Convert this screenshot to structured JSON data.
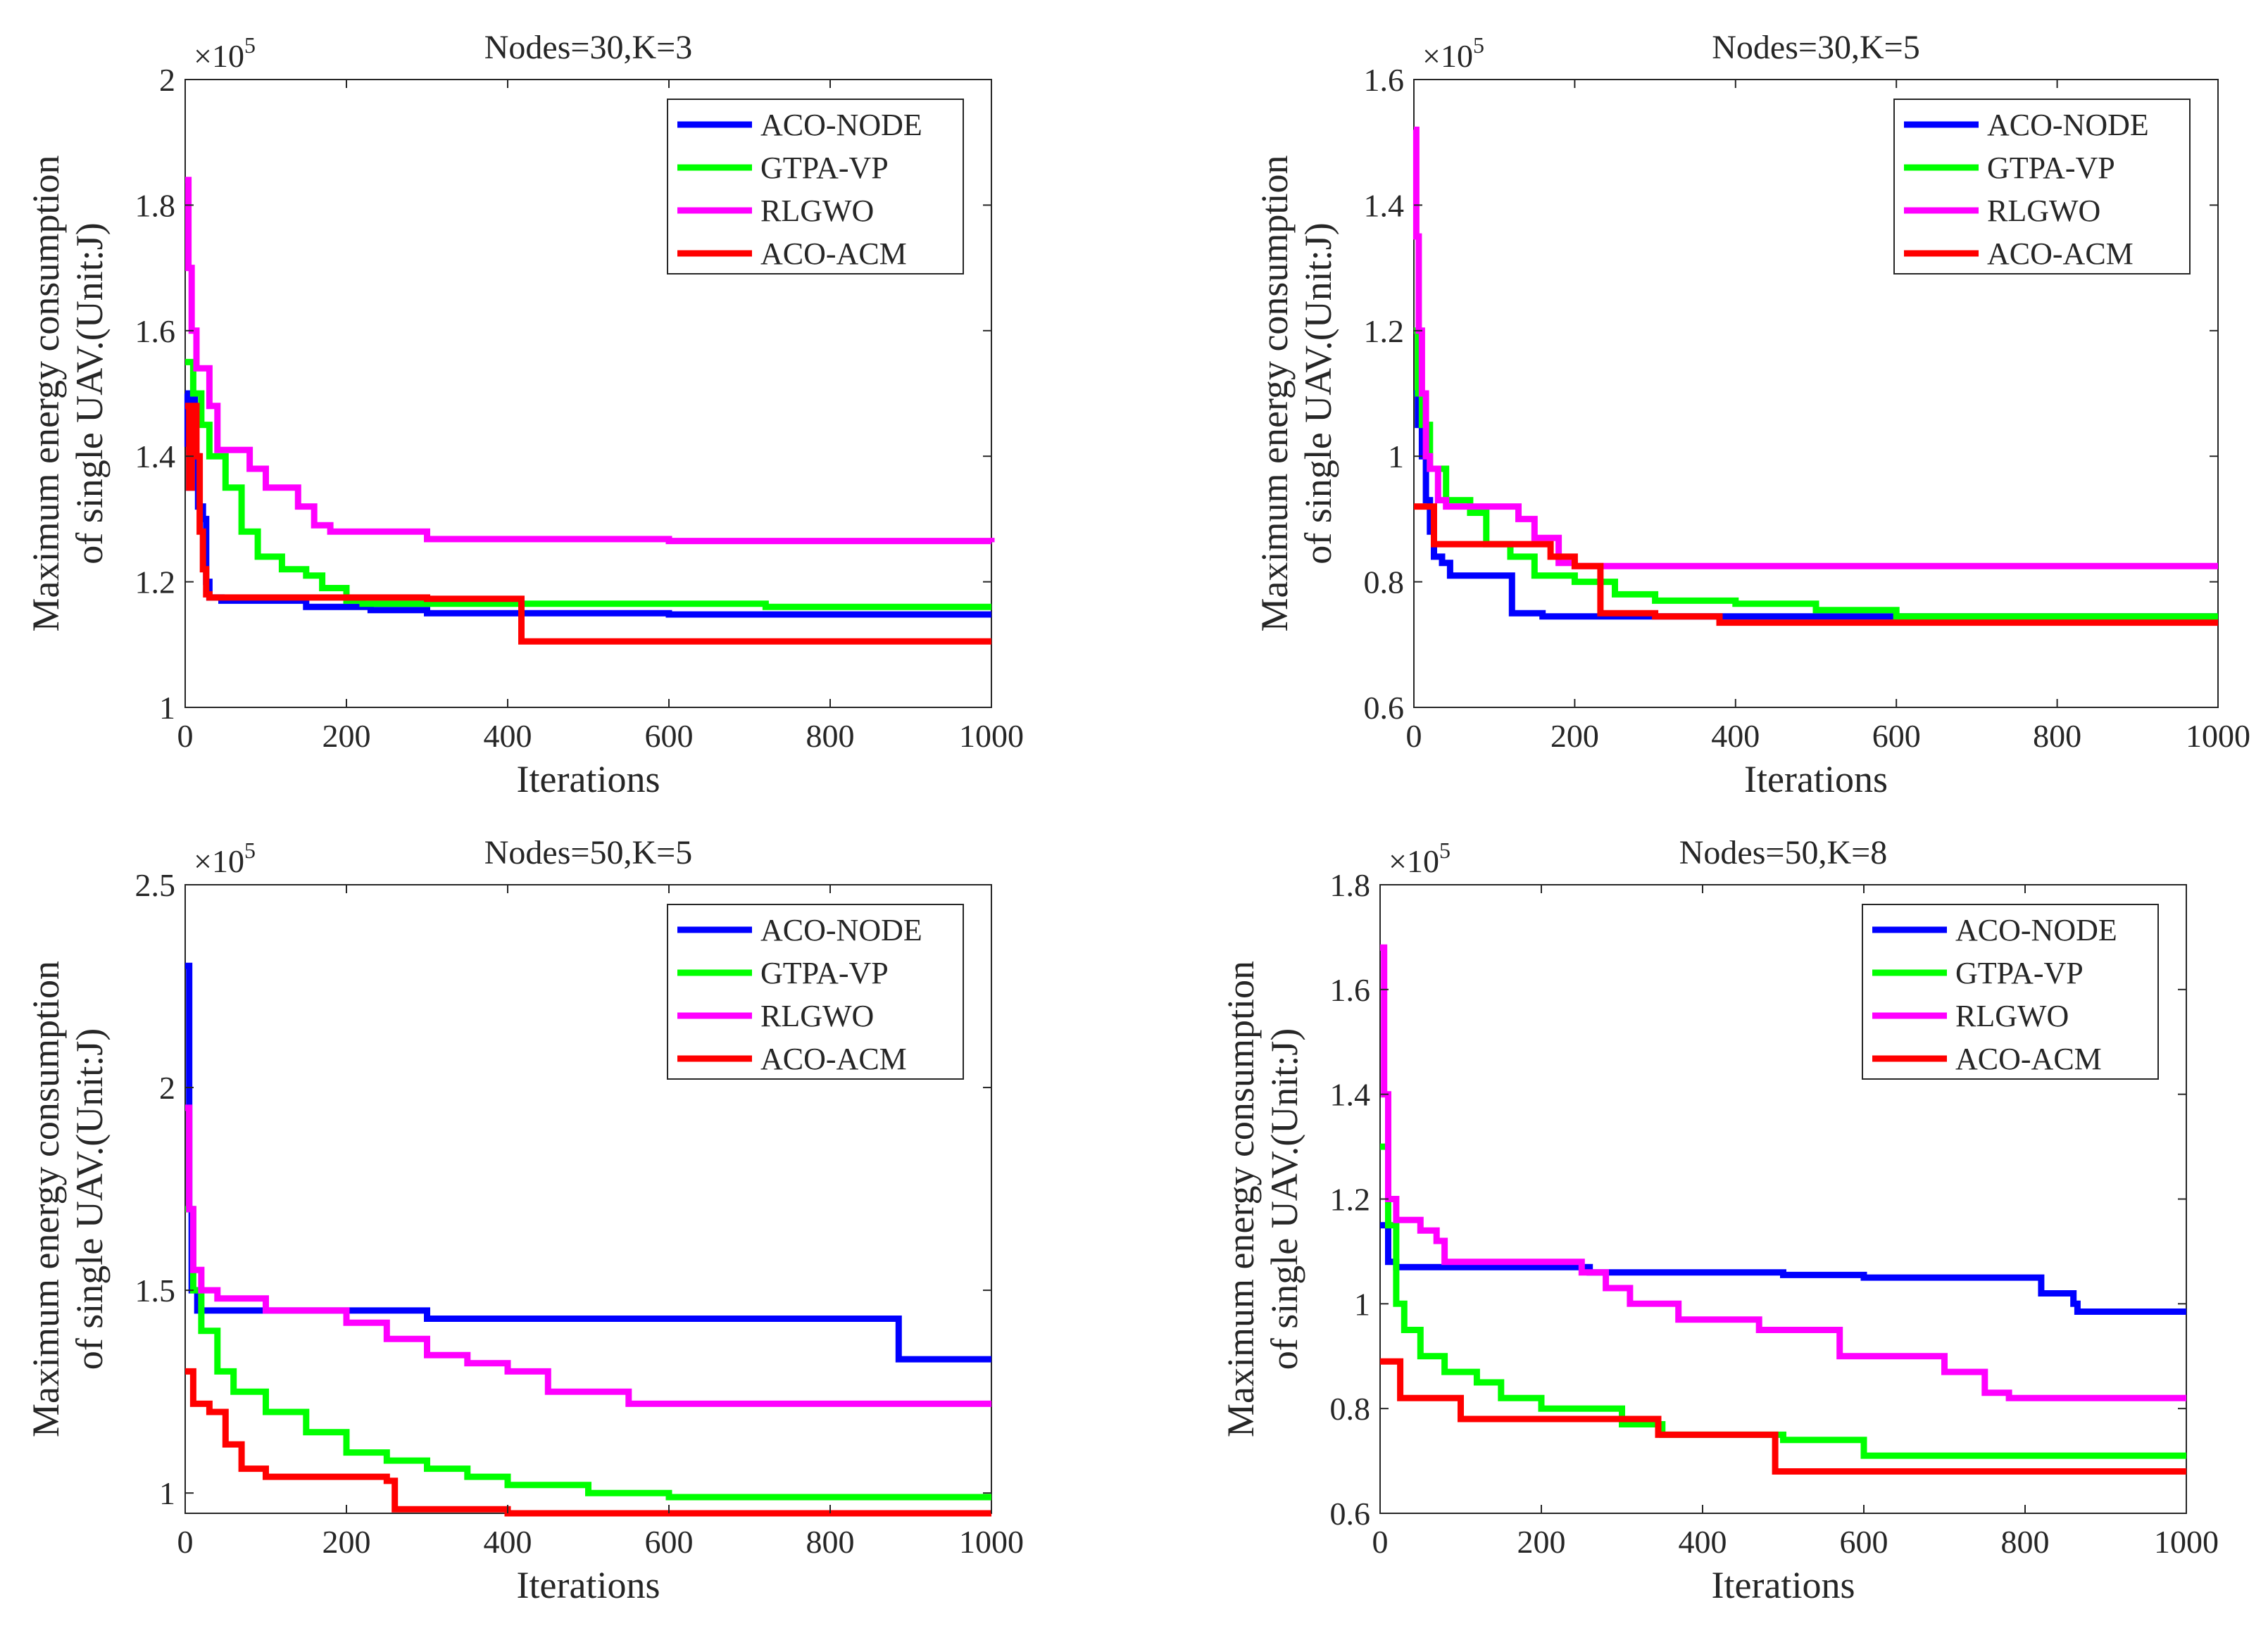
{
  "figure": {
    "x_axis_label": "Iterations"
  },
  "chart_data": [
    {
      "type": "line",
      "title": "Nodes=30,K=3",
      "xlabel": "Iterations",
      "ylabel_line1": "Maximum energy consumption",
      "ylabel_line2": "of single UAV.(Unit:J)",
      "exponent_base": "×10",
      "exponent_power": "5",
      "xlim": [
        0,
        1000
      ],
      "ylim": [
        1.0,
        2.0
      ],
      "x_ticks": [
        0,
        200,
        400,
        600,
        800,
        1000
      ],
      "y_ticks": [
        1,
        1.2,
        1.4,
        1.6,
        1.8,
        2
      ],
      "y_tick_labels": [
        "1",
        "1.2",
        "1.4",
        "1.6",
        "1.8",
        "2"
      ],
      "legend": [
        "ACO-NODE",
        "GTPA-VP",
        "RLGWO",
        "ACO-ACM"
      ],
      "legend_position": "top-right",
      "series": [
        {
          "name": "ACO-NODE",
          "color": "#0000ff",
          "points": [
            [
              0,
              1.5
            ],
            [
              3,
              1.42
            ],
            [
              5,
              1.35
            ],
            [
              8,
              1.5
            ],
            [
              12,
              1.4
            ],
            [
              16,
              1.32
            ],
            [
              22,
              1.3
            ],
            [
              26,
              1.2
            ],
            [
              30,
              1.175
            ],
            [
              45,
              1.17
            ],
            [
              150,
              1.16
            ],
            [
              230,
              1.155
            ],
            [
              300,
              1.15
            ],
            [
              600,
              1.148
            ],
            [
              1000,
              1.148
            ]
          ]
        },
        {
          "name": "GTPA-VP",
          "color": "#00ff00",
          "points": [
            [
              0,
              1.55
            ],
            [
              10,
              1.5
            ],
            [
              20,
              1.45
            ],
            [
              30,
              1.4
            ],
            [
              50,
              1.35
            ],
            [
              70,
              1.28
            ],
            [
              90,
              1.24
            ],
            [
              120,
              1.22
            ],
            [
              150,
              1.21
            ],
            [
              170,
              1.19
            ],
            [
              200,
              1.17
            ],
            [
              220,
              1.165
            ],
            [
              400,
              1.165
            ],
            [
              600,
              1.165
            ],
            [
              720,
              1.16
            ],
            [
              1000,
              1.16
            ]
          ]
        },
        {
          "name": "RLGWO",
          "color": "#ff00ff",
          "points": [
            [
              0,
              1.84
            ],
            [
              4,
              1.7
            ],
            [
              8,
              1.6
            ],
            [
              14,
              1.54
            ],
            [
              25,
              1.54
            ],
            [
              30,
              1.48
            ],
            [
              40,
              1.41
            ],
            [
              60,
              1.41
            ],
            [
              80,
              1.38
            ],
            [
              100,
              1.35
            ],
            [
              130,
              1.35
            ],
            [
              140,
              1.32
            ],
            [
              160,
              1.29
            ],
            [
              180,
              1.28
            ],
            [
              300,
              1.268
            ],
            [
              600,
              1.265
            ],
            [
              1000,
              1.263
            ]
          ]
        },
        {
          "name": "ACO-ACM",
          "color": "#ff0000",
          "points": [
            [
              0,
              1.48
            ],
            [
              5,
              1.35
            ],
            [
              8,
              1.48
            ],
            [
              14,
              1.4
            ],
            [
              18,
              1.28
            ],
            [
              22,
              1.22
            ],
            [
              26,
              1.18
            ],
            [
              30,
              1.175
            ],
            [
              200,
              1.175
            ],
            [
              300,
              1.173
            ],
            [
              415,
              1.173
            ],
            [
              417,
              1.105
            ],
            [
              1000,
              1.105
            ]
          ]
        }
      ]
    },
    {
      "type": "line",
      "title": "Nodes=30,K=5",
      "xlabel": "Iterations",
      "ylabel_line1": "Maximum energy consumption",
      "ylabel_line2": "of single UAV.(Unit:J)",
      "exponent_base": "×10",
      "exponent_power": "5",
      "xlim": [
        0,
        1000
      ],
      "ylim": [
        0.6,
        1.6
      ],
      "x_ticks": [
        0,
        200,
        400,
        600,
        800,
        1000
      ],
      "y_ticks": [
        0.6,
        0.8,
        1,
        1.2,
        1.4,
        1.6
      ],
      "y_tick_labels": [
        "0.6",
        "0.8",
        "1",
        "1.2",
        "1.4",
        "1.6"
      ],
      "legend": [
        "ACO-NODE",
        "GTPA-VP",
        "RLGWO",
        "ACO-ACM"
      ],
      "legend_position": "top-right",
      "series": [
        {
          "name": "ACO-NODE",
          "color": "#0000ff",
          "points": [
            [
              0,
              1.1
            ],
            [
              5,
              1.05
            ],
            [
              10,
              1.0
            ],
            [
              15,
              0.93
            ],
            [
              20,
              0.88
            ],
            [
              25,
              0.84
            ],
            [
              35,
              0.83
            ],
            [
              45,
              0.81
            ],
            [
              120,
              0.81
            ],
            [
              122,
              0.75
            ],
            [
              160,
              0.745
            ],
            [
              400,
              0.745
            ],
            [
              1000,
              0.745
            ]
          ]
        },
        {
          "name": "GTPA-VP",
          "color": "#00ff00",
          "points": [
            [
              0,
              1.2
            ],
            [
              5,
              1.1
            ],
            [
              10,
              1.05
            ],
            [
              20,
              0.98
            ],
            [
              40,
              0.93
            ],
            [
              70,
              0.91
            ],
            [
              90,
              0.86
            ],
            [
              120,
              0.84
            ],
            [
              150,
              0.81
            ],
            [
              200,
              0.8
            ],
            [
              250,
              0.78
            ],
            [
              300,
              0.77
            ],
            [
              400,
              0.765
            ],
            [
              500,
              0.755
            ],
            [
              600,
              0.745
            ],
            [
              1000,
              0.745
            ]
          ]
        },
        {
          "name": "RLGWO",
          "color": "#ff00ff",
          "points": [
            [
              0,
              1.52
            ],
            [
              3,
              1.35
            ],
            [
              6,
              1.2
            ],
            [
              10,
              1.1
            ],
            [
              15,
              1.0
            ],
            [
              20,
              0.98
            ],
            [
              30,
              0.93
            ],
            [
              40,
              0.92
            ],
            [
              80,
              0.92
            ],
            [
              130,
              0.9
            ],
            [
              150,
              0.87
            ],
            [
              180,
              0.83
            ],
            [
              200,
              0.825
            ],
            [
              1000,
              0.825
            ]
          ]
        },
        {
          "name": "ACO-ACM",
          "color": "#ff0000",
          "points": [
            [
              0,
              0.92
            ],
            [
              20,
              0.92
            ],
            [
              25,
              0.86
            ],
            [
              140,
              0.86
            ],
            [
              170,
              0.84
            ],
            [
              200,
              0.825
            ],
            [
              230,
              0.825
            ],
            [
              232,
              0.75
            ],
            [
              300,
              0.745
            ],
            [
              380,
              0.735
            ],
            [
              1000,
              0.735
            ]
          ]
        }
      ]
    },
    {
      "type": "line",
      "title": "Nodes=50,K=5",
      "xlabel": "Iterations",
      "ylabel_line1": "Maximum energy consumption",
      "ylabel_line2": "of single UAV.(Unit:J)",
      "exponent_base": "×10",
      "exponent_power": "5",
      "xlim": [
        0,
        1000
      ],
      "ylim": [
        0.95,
        2.5
      ],
      "x_ticks": [
        0,
        200,
        400,
        600,
        800,
        1000
      ],
      "y_ticks": [
        1,
        1.5,
        2,
        2.5
      ],
      "y_tick_labels": [
        "1",
        "1.5",
        "2",
        "2.5"
      ],
      "legend": [
        "ACO-NODE",
        "GTPA-VP",
        "RLGWO",
        "ACO-ACM"
      ],
      "legend_position": "top-right",
      "series": [
        {
          "name": "ACO-NODE",
          "color": "#0000ff",
          "points": [
            [
              0,
              2.3
            ],
            [
              5,
              1.7
            ],
            [
              8,
              1.5
            ],
            [
              15,
              1.45
            ],
            [
              200,
              1.45
            ],
            [
              300,
              1.43
            ],
            [
              880,
              1.43
            ],
            [
              885,
              1.33
            ],
            [
              1000,
              1.33
            ]
          ]
        },
        {
          "name": "GTPA-VP",
          "color": "#00ff00",
          "points": [
            [
              0,
              1.7
            ],
            [
              10,
              1.5
            ],
            [
              20,
              1.4
            ],
            [
              40,
              1.3
            ],
            [
              60,
              1.25
            ],
            [
              100,
              1.2
            ],
            [
              150,
              1.15
            ],
            [
              200,
              1.1
            ],
            [
              250,
              1.08
            ],
            [
              300,
              1.06
            ],
            [
              350,
              1.04
            ],
            [
              400,
              1.02
            ],
            [
              500,
              1.0
            ],
            [
              600,
              0.99
            ],
            [
              1000,
              0.99
            ]
          ]
        },
        {
          "name": "RLGWO",
          "color": "#ff00ff",
          "points": [
            [
              0,
              1.95
            ],
            [
              5,
              1.7
            ],
            [
              10,
              1.55
            ],
            [
              20,
              1.5
            ],
            [
              40,
              1.48
            ],
            [
              100,
              1.45
            ],
            [
              200,
              1.42
            ],
            [
              250,
              1.38
            ],
            [
              300,
              1.34
            ],
            [
              350,
              1.32
            ],
            [
              400,
              1.3
            ],
            [
              450,
              1.25
            ],
            [
              550,
              1.22
            ],
            [
              1000,
              1.22
            ]
          ]
        },
        {
          "name": "ACO-ACM",
          "color": "#ff0000",
          "points": [
            [
              0,
              1.3
            ],
            [
              10,
              1.22
            ],
            [
              30,
              1.2
            ],
            [
              50,
              1.12
            ],
            [
              70,
              1.06
            ],
            [
              100,
              1.04
            ],
            [
              250,
              1.03
            ],
            [
              260,
              0.96
            ],
            [
              300,
              0.96
            ],
            [
              400,
              0.95
            ],
            [
              1000,
              0.95
            ]
          ]
        }
      ]
    },
    {
      "type": "line",
      "title": "Nodes=50,K=8",
      "xlabel": "Iterations",
      "ylabel_line1": "Maximum energy consumption",
      "ylabel_line2": "of single UAV.(Unit:J)",
      "exponent_base": "×10",
      "exponent_power": "5",
      "xlim": [
        0,
        1000
      ],
      "ylim": [
        0.6,
        1.8
      ],
      "x_ticks": [
        0,
        200,
        400,
        600,
        800,
        1000
      ],
      "y_ticks": [
        0.6,
        0.8,
        1,
        1.2,
        1.4,
        1.6,
        1.8
      ],
      "y_tick_labels": [
        "0.6",
        "0.8",
        "1",
        "1.2",
        "1.4",
        "1.6",
        "1.8"
      ],
      "legend": [
        "ACO-NODE",
        "GTPA-VP",
        "RLGWO",
        "ACO-ACM"
      ],
      "legend_position": "top-right",
      "series": [
        {
          "name": "ACO-NODE",
          "color": "#0000ff",
          "points": [
            [
              0,
              1.15
            ],
            [
              10,
              1.08
            ],
            [
              20,
              1.07
            ],
            [
              200,
              1.07
            ],
            [
              260,
              1.06
            ],
            [
              500,
              1.055
            ],
            [
              600,
              1.05
            ],
            [
              810,
              1.05
            ],
            [
              820,
              1.02
            ],
            [
              860,
              1.0
            ],
            [
              865,
              0.985
            ],
            [
              1000,
              0.985
            ]
          ]
        },
        {
          "name": "GTPA-VP",
          "color": "#00ff00",
          "points": [
            [
              0,
              1.3
            ],
            [
              10,
              1.15
            ],
            [
              20,
              1.0
            ],
            [
              30,
              0.95
            ],
            [
              50,
              0.9
            ],
            [
              80,
              0.87
            ],
            [
              120,
              0.85
            ],
            [
              150,
              0.82
            ],
            [
              200,
              0.8
            ],
            [
              300,
              0.77
            ],
            [
              350,
              0.75
            ],
            [
              500,
              0.74
            ],
            [
              600,
              0.71
            ],
            [
              1000,
              0.71
            ]
          ]
        },
        {
          "name": "RLGWO",
          "color": "#ff00ff",
          "points": [
            [
              0,
              1.68
            ],
            [
              5,
              1.4
            ],
            [
              10,
              1.2
            ],
            [
              20,
              1.16
            ],
            [
              50,
              1.14
            ],
            [
              70,
              1.12
            ],
            [
              80,
              1.08
            ],
            [
              250,
              1.06
            ],
            [
              280,
              1.03
            ],
            [
              310,
              1.0
            ],
            [
              370,
              0.97
            ],
            [
              470,
              0.95
            ],
            [
              570,
              0.9
            ],
            [
              700,
              0.87
            ],
            [
              750,
              0.83
            ],
            [
              780,
              0.82
            ],
            [
              1000,
              0.82
            ]
          ]
        },
        {
          "name": "ACO-ACM",
          "color": "#ff0000",
          "points": [
            [
              0,
              0.89
            ],
            [
              20,
              0.89
            ],
            [
              25,
              0.82
            ],
            [
              90,
              0.82
            ],
            [
              100,
              0.78
            ],
            [
              340,
              0.78
            ],
            [
              345,
              0.75
            ],
            [
              480,
              0.75
            ],
            [
              490,
              0.68
            ],
            [
              1000,
              0.68
            ]
          ]
        }
      ]
    }
  ]
}
